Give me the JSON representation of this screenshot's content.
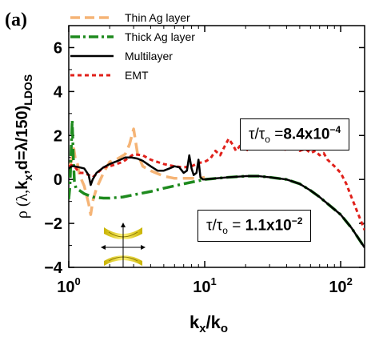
{
  "panel_label": "(a)",
  "annotations": [
    {
      "prefix": "τ/τ",
      "sub": "o",
      "eq": " =",
      "mant": "8.4x10",
      "exp": "−4"
    },
    {
      "prefix": "τ/τ",
      "sub": "o",
      "eq": " = ",
      "mant": "1.1x10",
      "exp": "−2"
    }
  ],
  "chart_data": {
    "type": "line",
    "title": "",
    "xlabel": "kx/ko",
    "ylabel": "ρ (λ,kx,d=λ/150)LDOS",
    "x_scale": "log",
    "xlim": [
      1,
      150
    ],
    "ylim": [
      -4,
      7
    ],
    "x_ticks": [
      {
        "value": 1,
        "mant": "10",
        "exp": "0"
      },
      {
        "value": 10,
        "mant": "10",
        "exp": "1"
      },
      {
        "value": 100,
        "mant": "10",
        "exp": "2"
      }
    ],
    "y_ticks": [
      -4,
      -2,
      0,
      2,
      4,
      6
    ],
    "legend_position": "top-left",
    "series": [
      {
        "name": "Thin Ag layer",
        "color": "#f5b476",
        "dash": "dashed",
        "x": [
          1.0,
          1.03,
          1.06,
          1.09,
          1.12,
          1.16,
          1.2,
          1.3,
          1.4,
          1.45,
          1.5,
          1.6,
          1.8,
          2.0,
          2.3,
          2.6,
          2.8,
          3.0,
          3.2,
          3.5,
          4.0,
          5.0,
          6.0,
          7.0,
          8.0,
          9.0,
          10.0
        ],
        "y": [
          0.6,
          0.7,
          1.0,
          1.4,
          0.9,
          0.7,
          0.2,
          -0.3,
          -1.1,
          -1.6,
          -1.0,
          -0.4,
          0.3,
          0.8,
          0.95,
          1.15,
          1.6,
          2.3,
          1.2,
          0.6,
          0.4,
          0.15,
          0.05,
          0.05,
          0.05,
          0.05,
          0.1
        ]
      },
      {
        "name": "Thick Ag layer",
        "color": "#1e8a1e",
        "dash": "dashdot",
        "x": [
          1.0,
          1.02,
          1.04,
          1.06,
          1.08,
          1.1,
          1.13,
          1.2,
          1.3,
          1.5,
          1.8,
          2.0,
          2.5,
          3.0,
          4.0,
          5.0,
          7.0,
          10.0,
          15.0,
          20.0,
          25.0,
          30.0,
          40.0,
          50.0,
          60.0,
          70.0,
          80.0,
          100.0,
          120.0,
          150.0
        ],
        "y": [
          -0.9,
          -0.3,
          1.2,
          2.7,
          1.0,
          -0.1,
          -0.4,
          -0.5,
          -0.65,
          -0.8,
          -0.85,
          -0.85,
          -0.8,
          -0.7,
          -0.55,
          -0.4,
          -0.2,
          0.0,
          0.1,
          0.15,
          0.15,
          0.1,
          0.0,
          -0.2,
          -0.5,
          -0.8,
          -1.1,
          -1.6,
          -2.2,
          -3.1
        ]
      },
      {
        "name": "Multilayer",
        "color": "#000000",
        "dash": "solid",
        "x": [
          1.0,
          1.05,
          1.1,
          1.2,
          1.3,
          1.4,
          1.45,
          1.5,
          1.6,
          1.8,
          2.0,
          2.3,
          2.6,
          2.9,
          3.2,
          3.5,
          4.0,
          4.5,
          5.0,
          5.5,
          6.0,
          6.5,
          7.0,
          7.4,
          7.7,
          8.0,
          8.3,
          8.7,
          9.0,
          9.3,
          9.7,
          10.0,
          12.0,
          15.0,
          20.0,
          25.0,
          30.0,
          40.0,
          50.0,
          60.0,
          70.0,
          80.0,
          100.0,
          120.0,
          150.0
        ],
        "y": [
          0.5,
          0.6,
          0.6,
          0.55,
          0.5,
          0.2,
          -0.25,
          0.0,
          0.3,
          0.55,
          0.7,
          0.85,
          1.0,
          1.0,
          0.95,
          0.85,
          0.6,
          0.4,
          0.4,
          0.5,
          0.6,
          0.55,
          0.3,
          0.4,
          1.1,
          0.5,
          0.2,
          0.3,
          0.9,
          0.1,
          0.0,
          0.0,
          0.05,
          0.1,
          0.15,
          0.15,
          0.1,
          0.0,
          -0.2,
          -0.5,
          -0.8,
          -1.1,
          -1.6,
          -2.2,
          -3.1
        ]
      },
      {
        "name": "EMT",
        "color": "#e0201a",
        "dash": "dotted",
        "x": [
          1.0,
          1.05,
          1.1,
          1.2,
          1.3,
          1.4,
          1.5,
          1.6,
          1.8,
          2.0,
          2.5,
          3.0,
          3.5,
          4.0,
          5.0,
          6.0,
          7.0,
          8.0,
          9.0,
          10.0,
          11.0,
          12.0,
          13.0,
          14.0,
          15.0,
          16.0,
          17.0,
          18.0,
          19.0,
          20.0,
          21.0,
          22.0,
          23.0,
          24.0,
          25.0,
          27.0,
          29.0,
          31.0,
          33.0,
          35.0,
          38.0,
          41.0,
          44.0,
          47.0,
          50.0,
          55.0,
          60.0,
          65.0,
          70.0,
          75.0,
          80.0,
          90.0,
          100.0,
          110.0,
          120.0,
          135.0,
          150.0
        ],
        "y": [
          0.6,
          0.65,
          0.6,
          0.3,
          0.3,
          0.2,
          0.1,
          0.25,
          0.55,
          0.6,
          0.8,
          1.15,
          1.1,
          0.9,
          0.7,
          0.6,
          0.55,
          0.6,
          0.75,
          0.8,
          0.95,
          1.3,
          1.1,
          1.5,
          1.85,
          1.6,
          1.3,
          1.5,
          1.7,
          1.4,
          1.3,
          1.55,
          1.75,
          1.5,
          1.4,
          1.6,
          1.7,
          1.4,
          1.5,
          1.7,
          1.3,
          1.5,
          1.4,
          1.55,
          1.3,
          1.4,
          1.2,
          1.3,
          1.1,
          1.2,
          0.9,
          0.6,
          0.3,
          -0.2,
          -0.8,
          -1.6,
          -2.3
        ]
      }
    ]
  }
}
